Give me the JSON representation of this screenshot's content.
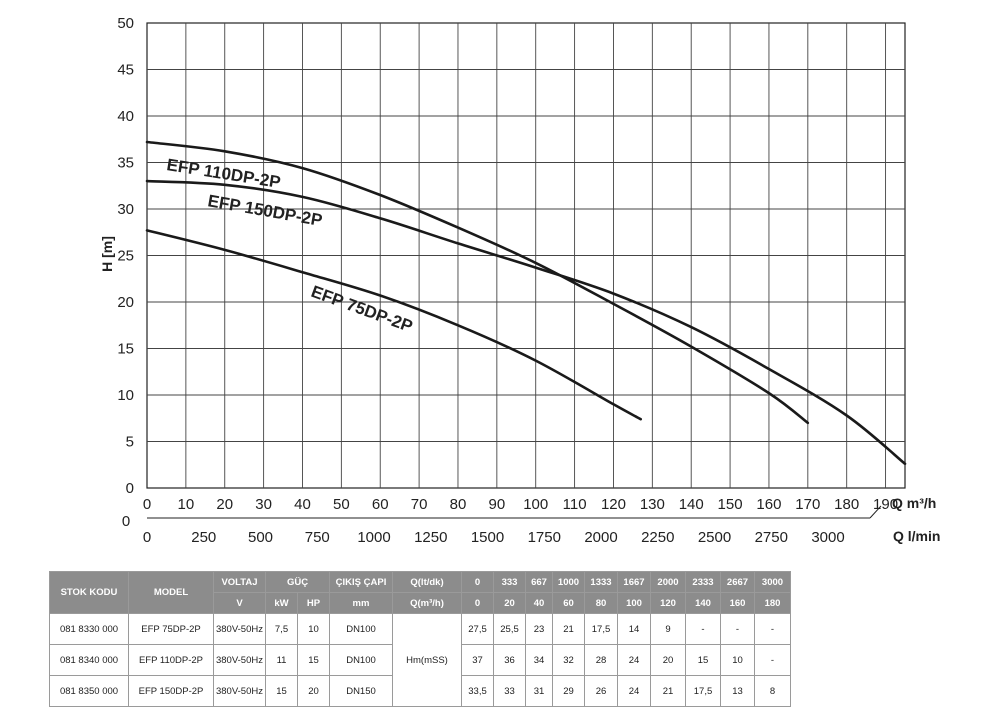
{
  "chart_data": {
    "type": "line",
    "xlabel": "Q m³/h",
    "x2label": "Q l/min",
    "ylabel": "H [m]",
    "xlim": [
      0,
      195
    ],
    "ylim": [
      0,
      50
    ],
    "x_ticks": [
      0,
      10,
      20,
      30,
      40,
      50,
      60,
      70,
      80,
      90,
      100,
      110,
      120,
      130,
      140,
      150,
      160,
      170,
      180,
      190
    ],
    "y_ticks": [
      0,
      5,
      10,
      15,
      20,
      25,
      30,
      35,
      40,
      45,
      50
    ],
    "x2_zero_label": "0",
    "x2_ticks": [
      0,
      250,
      500,
      750,
      1000,
      1250,
      1500,
      1750,
      2000,
      2250,
      2500,
      2750,
      3000
    ],
    "grid": true,
    "series": [
      {
        "name": "EFP 110DP-2P",
        "x": [
          0,
          20,
          40,
          60,
          80,
          100,
          120,
          140,
          160,
          170
        ],
        "y": [
          37.2,
          36.2,
          34.4,
          31.5,
          28,
          24.2,
          19.8,
          15.2,
          10.2,
          7
        ]
      },
      {
        "name": "EFP 150DP-2P",
        "x": [
          0,
          20,
          40,
          60,
          80,
          100,
          120,
          140,
          160,
          180,
          195
        ],
        "y": [
          33,
          32.6,
          31.3,
          29,
          26.3,
          23.7,
          20.9,
          17.3,
          12.8,
          7.8,
          2.6
        ]
      },
      {
        "name": "EFP 75DP-2P",
        "x": [
          0,
          20,
          40,
          60,
          80,
          100,
          120,
          127
        ],
        "y": [
          27.7,
          25.6,
          23.2,
          20.7,
          17.5,
          13.7,
          9,
          7.4
        ]
      }
    ]
  },
  "table": {
    "headers": {
      "stock_code": "STOK KODU",
      "model": "MODEL",
      "voltage": "VOLTAJ",
      "voltage_unit": "V",
      "power": "GÜÇ",
      "power_kw": "kW",
      "power_hp": "HP",
      "outlet": "ÇIKIŞ ÇAPI",
      "outlet_unit": "mm",
      "flow_lt": "Q(lt/dk)",
      "flow_m3": "Q(m³/h)",
      "flow_lt_values": [
        "0",
        "333",
        "667",
        "1000",
        "1333",
        "1667",
        "2000",
        "2333",
        "2667",
        "3000"
      ],
      "flow_m3_values": [
        "0",
        "20",
        "40",
        "60",
        "80",
        "100",
        "120",
        "140",
        "160",
        "180"
      ],
      "head": "Hm(mSS)"
    },
    "rows": [
      {
        "stock_code": "081 8330 000",
        "model": "EFP 75DP-2P",
        "voltage": "380V-50Hz",
        "kw": "7,5",
        "hp": "10",
        "outlet": "DN100",
        "head": [
          "27,5",
          "25,5",
          "23",
          "21",
          "17,5",
          "14",
          "9",
          "-",
          "-",
          "-"
        ]
      },
      {
        "stock_code": "081 8340 000",
        "model": "EFP 110DP-2P",
        "voltage": "380V-50Hz",
        "kw": "11",
        "hp": "15",
        "outlet": "DN100",
        "head": [
          "37",
          "36",
          "34",
          "32",
          "28",
          "24",
          "20",
          "15",
          "10",
          "-"
        ]
      },
      {
        "stock_code": "081 8350 000",
        "model": "EFP 150DP-2P",
        "voltage": "380V-50Hz",
        "kw": "15",
        "hp": "20",
        "outlet": "DN150",
        "head": [
          "33,5",
          "33",
          "31",
          "29",
          "26",
          "24",
          "21",
          "17,5",
          "13",
          "8"
        ]
      }
    ]
  }
}
